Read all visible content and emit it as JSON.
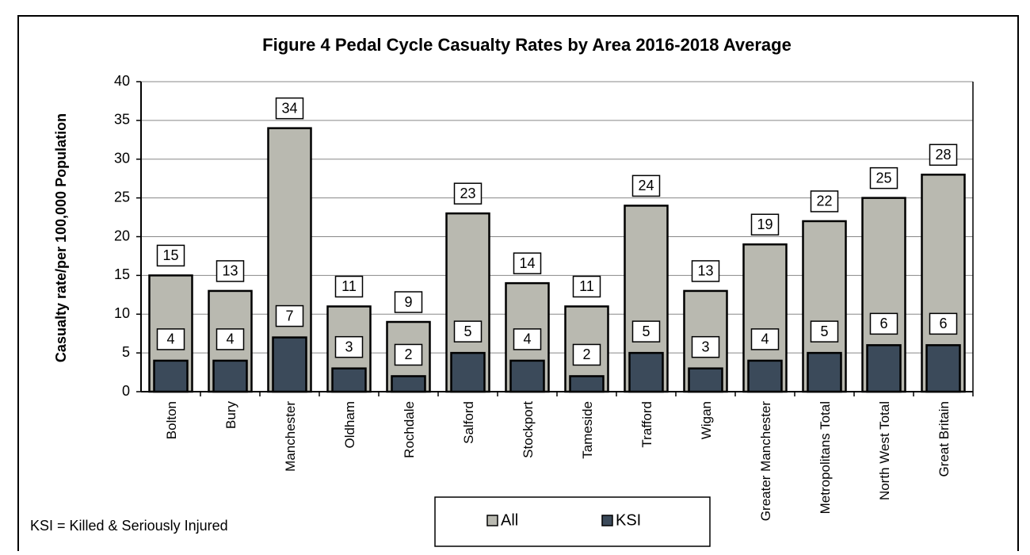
{
  "chart_data": {
    "type": "bar",
    "title": "Figure 4 Pedal Cycle Casualty Rates by Area 2016-2018 Average",
    "y_label": "Casualty rate/per 100,000 Population",
    "note": "KSI = Killed & Seriously Injured",
    "categories": [
      "Bolton",
      "Bury",
      "Manchester",
      "Oldham",
      "Rochdale",
      "Salford",
      "Stockport",
      "Tameside",
      "Trafford",
      "Wigan",
      "Greater Manchester",
      "Metropolitans Total",
      "North West Total",
      "Great Britain"
    ],
    "series": [
      {
        "name": "All",
        "color": "#b9b9b0",
        "values": [
          15,
          13,
          34,
          11,
          9,
          23,
          14,
          11,
          24,
          13,
          19,
          22,
          25,
          28
        ]
      },
      {
        "name": "KSI",
        "color": "#3b4a5a",
        "values": [
          4,
          4,
          7,
          3,
          2,
          5,
          4,
          2,
          5,
          3,
          4,
          5,
          6,
          6
        ]
      }
    ],
    "ylim": [
      0,
      40
    ],
    "yticks": [
      0,
      5,
      10,
      15,
      20,
      25,
      30,
      35,
      40
    ],
    "grid": true,
    "legend": "bottom"
  }
}
